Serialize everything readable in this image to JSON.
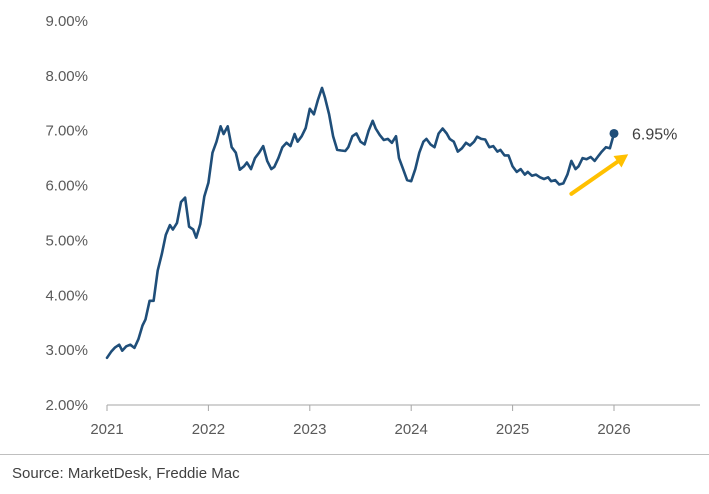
{
  "chart_data": {
    "type": "line",
    "title": "",
    "xlabel": "",
    "ylabel": "",
    "xlim": [
      2021,
      2026
    ],
    "ylim": [
      2.0,
      9.0
    ],
    "x_ticks": [
      "2021",
      "2022",
      "2023",
      "2024",
      "2025",
      "2026"
    ],
    "y_ticks": [
      "2.00%",
      "3.00%",
      "4.00%",
      "5.00%",
      "6.00%",
      "7.00%",
      "8.00%",
      "9.00%"
    ],
    "grid": false,
    "series": [
      {
        "color": "#1f4e79",
        "points": [
          [
            2021.0,
            2.86
          ],
          [
            2021.04,
            2.97
          ],
          [
            2021.08,
            3.05
          ],
          [
            2021.12,
            3.1
          ],
          [
            2021.15,
            2.99
          ],
          [
            2021.19,
            3.07
          ],
          [
            2021.23,
            3.1
          ],
          [
            2021.27,
            3.04
          ],
          [
            2021.31,
            3.2
          ],
          [
            2021.35,
            3.45
          ],
          [
            2021.38,
            3.56
          ],
          [
            2021.42,
            3.9
          ],
          [
            2021.46,
            3.9
          ],
          [
            2021.5,
            4.45
          ],
          [
            2021.54,
            4.75
          ],
          [
            2021.58,
            5.1
          ],
          [
            2021.62,
            5.28
          ],
          [
            2021.65,
            5.2
          ],
          [
            2021.69,
            5.32
          ],
          [
            2021.73,
            5.7
          ],
          [
            2021.77,
            5.78
          ],
          [
            2021.81,
            5.25
          ],
          [
            2021.85,
            5.2
          ],
          [
            2021.88,
            5.05
          ],
          [
            2021.92,
            5.3
          ],
          [
            2021.96,
            5.8
          ],
          [
            2022.0,
            6.05
          ],
          [
            2022.04,
            6.6
          ],
          [
            2022.08,
            6.8
          ],
          [
            2022.12,
            7.08
          ],
          [
            2022.15,
            6.94
          ],
          [
            2022.19,
            7.08
          ],
          [
            2022.23,
            6.7
          ],
          [
            2022.27,
            6.6
          ],
          [
            2022.31,
            6.29
          ],
          [
            2022.35,
            6.35
          ],
          [
            2022.38,
            6.42
          ],
          [
            2022.42,
            6.3
          ],
          [
            2022.46,
            6.5
          ],
          [
            2022.5,
            6.6
          ],
          [
            2022.54,
            6.72
          ],
          [
            2022.58,
            6.45
          ],
          [
            2022.62,
            6.3
          ],
          [
            2022.65,
            6.34
          ],
          [
            2022.69,
            6.5
          ],
          [
            2022.73,
            6.7
          ],
          [
            2022.77,
            6.78
          ],
          [
            2022.81,
            6.72
          ],
          [
            2022.85,
            6.94
          ],
          [
            2022.88,
            6.8
          ],
          [
            2022.92,
            6.9
          ],
          [
            2022.96,
            7.05
          ],
          [
            2023.0,
            7.4
          ],
          [
            2023.04,
            7.3
          ],
          [
            2023.08,
            7.56
          ],
          [
            2023.12,
            7.78
          ],
          [
            2023.15,
            7.6
          ],
          [
            2023.19,
            7.3
          ],
          [
            2023.23,
            6.9
          ],
          [
            2023.27,
            6.65
          ],
          [
            2023.31,
            6.64
          ],
          [
            2023.35,
            6.63
          ],
          [
            2023.38,
            6.7
          ],
          [
            2023.42,
            6.9
          ],
          [
            2023.46,
            6.95
          ],
          [
            2023.5,
            6.8
          ],
          [
            2023.54,
            6.75
          ],
          [
            2023.58,
            7.0
          ],
          [
            2023.62,
            7.18
          ],
          [
            2023.65,
            7.04
          ],
          [
            2023.69,
            6.92
          ],
          [
            2023.73,
            6.83
          ],
          [
            2023.77,
            6.85
          ],
          [
            2023.81,
            6.78
          ],
          [
            2023.85,
            6.9
          ],
          [
            2023.88,
            6.5
          ],
          [
            2023.92,
            6.3
          ],
          [
            2023.96,
            6.1
          ],
          [
            2024.0,
            6.08
          ],
          [
            2024.04,
            6.3
          ],
          [
            2024.08,
            6.6
          ],
          [
            2024.12,
            6.8
          ],
          [
            2024.15,
            6.85
          ],
          [
            2024.19,
            6.75
          ],
          [
            2024.23,
            6.7
          ],
          [
            2024.27,
            6.95
          ],
          [
            2024.31,
            7.04
          ],
          [
            2024.35,
            6.95
          ],
          [
            2024.38,
            6.85
          ],
          [
            2024.42,
            6.8
          ],
          [
            2024.46,
            6.62
          ],
          [
            2024.5,
            6.68
          ],
          [
            2024.54,
            6.78
          ],
          [
            2024.58,
            6.73
          ],
          [
            2024.62,
            6.8
          ],
          [
            2024.65,
            6.89
          ],
          [
            2024.69,
            6.85
          ],
          [
            2024.73,
            6.84
          ],
          [
            2024.77,
            6.7
          ],
          [
            2024.81,
            6.72
          ],
          [
            2024.85,
            6.62
          ],
          [
            2024.88,
            6.65
          ],
          [
            2024.92,
            6.55
          ],
          [
            2024.96,
            6.55
          ],
          [
            2025.0,
            6.35
          ],
          [
            2025.04,
            6.25
          ],
          [
            2025.08,
            6.3
          ],
          [
            2025.12,
            6.2
          ],
          [
            2025.15,
            6.25
          ],
          [
            2025.19,
            6.18
          ],
          [
            2025.23,
            6.2
          ],
          [
            2025.27,
            6.15
          ],
          [
            2025.31,
            6.12
          ],
          [
            2025.35,
            6.15
          ],
          [
            2025.38,
            6.08
          ],
          [
            2025.42,
            6.1
          ],
          [
            2025.46,
            6.02
          ],
          [
            2025.5,
            6.04
          ],
          [
            2025.54,
            6.2
          ],
          [
            2025.58,
            6.45
          ],
          [
            2025.62,
            6.3
          ],
          [
            2025.65,
            6.35
          ],
          [
            2025.69,
            6.5
          ],
          [
            2025.73,
            6.48
          ],
          [
            2025.77,
            6.52
          ],
          [
            2025.81,
            6.45
          ],
          [
            2025.85,
            6.55
          ],
          [
            2025.88,
            6.62
          ],
          [
            2025.92,
            6.7
          ],
          [
            2025.96,
            6.68
          ],
          [
            2026.0,
            6.95
          ]
        ]
      }
    ],
    "end_label": "6.95%",
    "end_value": 6.95,
    "arrow": {
      "color": "#ffc000",
      "from": [
        2025.58,
        5.85
      ],
      "to": [
        2026.14,
        6.57
      ]
    }
  },
  "footer": {
    "source": "Source: MarketDesk, Freddie Mac"
  }
}
